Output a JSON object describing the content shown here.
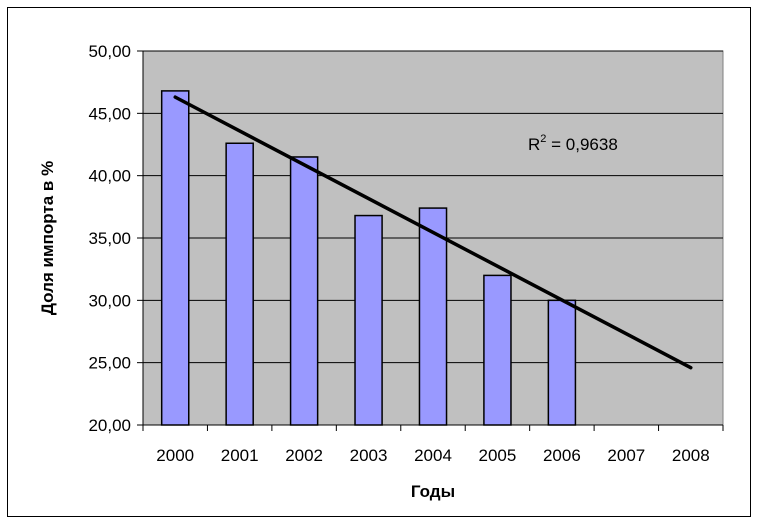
{
  "chart_data": {
    "type": "bar",
    "title": "",
    "xlabel": "Годы",
    "ylabel": "Доля импорта в %",
    "categories": [
      "2000",
      "2001",
      "2002",
      "2003",
      "2004",
      "2005",
      "2006",
      "2007",
      "2008"
    ],
    "series": [
      {
        "values": [
          46.8,
          42.6,
          41.5,
          36.8,
          37.4,
          32.0,
          30.0,
          null,
          null
        ]
      }
    ],
    "ylim": [
      20,
      50
    ],
    "yticks": [
      "20,00",
      "25,00",
      "30,00",
      "35,00",
      "40,00",
      "45,00",
      "50,00"
    ],
    "ytick_values": [
      20,
      25,
      30,
      35,
      40,
      45,
      50
    ],
    "grid": true,
    "legend": "none",
    "trendline": {
      "type": "linear",
      "start": {
        "category": "2000",
        "value": 46.3
      },
      "end": {
        "category": "2008",
        "value": 24.6
      },
      "r2_base": "R",
      "r2_sup": "2",
      "r2_value": " = 0,9638"
    },
    "colors": {
      "bar_fill": "#9999ff",
      "plot_background": "#c0c0c0"
    }
  }
}
